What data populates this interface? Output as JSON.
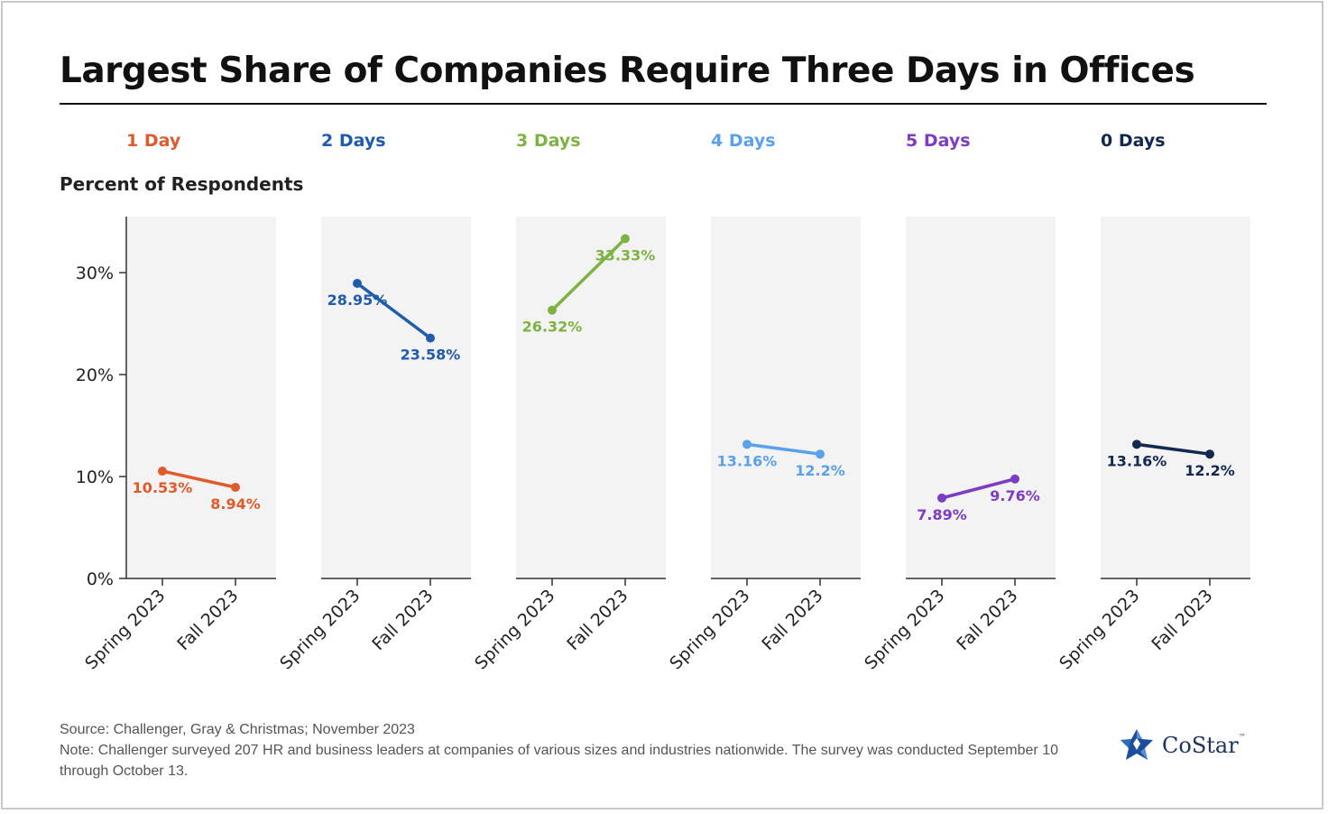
{
  "title": "Largest Share of Companies Require Three Days in Offices",
  "footer": {
    "source": "Source: Challenger, Gray & Christmas; November 2023",
    "note": "Note: Challenger surveyed 207 HR and business leaders at companies of various sizes and industries nationwide. The survey was conducted September 10 through October 13."
  },
  "logo": {
    "text": "CoStar",
    "tm": "™",
    "icon": "costar-star-icon"
  },
  "chart_data": {
    "type": "line",
    "ylabel": "Percent of Respondents",
    "ylim": [
      0,
      35.5
    ],
    "yticks": [
      {
        "value": 0,
        "label": "0%"
      },
      {
        "value": 10,
        "label": "10%"
      },
      {
        "value": 20,
        "label": "20%"
      },
      {
        "value": 30,
        "label": "30%"
      }
    ],
    "x": [
      "Spring 2023",
      "Fall 2023"
    ],
    "series": [
      {
        "name": "1 Day",
        "color": "#e05a2b",
        "values": [
          10.53,
          8.94
        ],
        "labels": [
          "10.53%",
          "8.94%"
        ]
      },
      {
        "name": "2 Days",
        "color": "#1f5cad",
        "values": [
          28.95,
          23.58
        ],
        "labels": [
          "28.95%",
          "23.58%"
        ]
      },
      {
        "name": "3 Days",
        "color": "#7cb342",
        "values": [
          26.32,
          33.33
        ],
        "labels": [
          "26.32%",
          "33.33%"
        ]
      },
      {
        "name": "4 Days",
        "color": "#5aa1ec",
        "values": [
          13.16,
          12.2
        ],
        "labels": [
          "13.16%",
          "12.2%"
        ]
      },
      {
        "name": "5 Days",
        "color": "#7e3cc3",
        "values": [
          7.89,
          9.76
        ],
        "labels": [
          "7.89%",
          "9.76%"
        ]
      },
      {
        "name": "0 Days",
        "color": "#12284f",
        "values": [
          13.16,
          12.2
        ],
        "labels": [
          "13.16%",
          "12.2%"
        ]
      }
    ],
    "panel_background": "#f3f3f3",
    "grid": false
  }
}
